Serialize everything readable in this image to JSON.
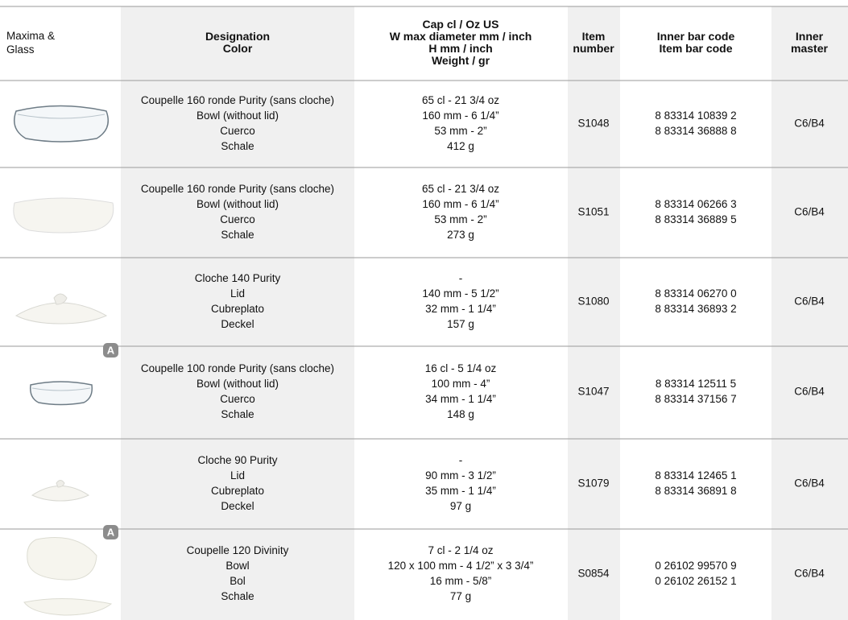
{
  "header": {
    "product": [
      "Maxima &",
      "Glass"
    ],
    "designation": [
      "Designation",
      "Color"
    ],
    "specs": [
      "Cap cl / Oz US",
      "W max diameter mm / inch",
      "H mm / inch",
      "Weight / gr"
    ],
    "item_number": [
      "Item",
      "number"
    ],
    "bar_code": [
      "Inner  bar code",
      "Item bar code"
    ],
    "inner_master": [
      "Inner",
      "master"
    ]
  },
  "rows": [
    {
      "designation": [
        "Coupelle 160 ronde Purity (sans cloche)",
        "Bowl (without lid)",
        "Cuerco",
        "Schale"
      ],
      "specs": [
        "65 cl - 21 3/4 oz",
        "160 mm - 6 1/4”",
        "53 mm - 2”",
        "412 g"
      ],
      "item_number": "S1048",
      "bar_codes": [
        "8 83314 10839 2",
        "8 83314 36888 8"
      ],
      "inner_master": "C6/B4"
    },
    {
      "designation": [
        "Coupelle 160 ronde Purity (sans cloche)",
        "Bowl (without lid)",
        "Cuerco",
        "Schale"
      ],
      "specs": [
        "65 cl - 21 3/4 oz",
        "160 mm - 6 1/4”",
        "53 mm - 2”",
        "273 g"
      ],
      "item_number": "S1051",
      "bar_codes": [
        "8 83314 06266 3",
        "8 83314 36889 5"
      ],
      "inner_master": "C6/B4"
    },
    {
      "designation": [
        "Cloche 140 Purity",
        "Lid",
        "Cubreplato",
        "Deckel"
      ],
      "specs": [
        "-",
        "140 mm - 5 1/2”",
        "32 mm - 1 1/4”",
        "157 g"
      ],
      "item_number": "S1080",
      "bar_codes": [
        "8 83314 06270 0",
        "8 83314 36893 2"
      ],
      "inner_master": "C6/B4"
    },
    {
      "badge": "A",
      "designation": [
        "Coupelle 100 ronde Purity (sans cloche)",
        "Bowl (without lid)",
        "Cuerco",
        "Schale"
      ],
      "specs": [
        "16 cl - 5 1/4 oz",
        "100 mm - 4”",
        "34 mm - 1 1/4”",
        "148 g"
      ],
      "item_number": "S1047",
      "bar_codes": [
        "8 83314 12511 5",
        "8 83314 37156 7"
      ],
      "inner_master": "C6/B4"
    },
    {
      "designation": [
        "Cloche 90 Purity",
        "Lid",
        "Cubreplato",
        "Deckel"
      ],
      "specs": [
        "-",
        "90 mm - 3 1/2”",
        "35 mm - 1 1/4”",
        "97 g"
      ],
      "item_number": "S1079",
      "bar_codes": [
        "8 83314 12465 1",
        "8 83314 36891 8"
      ],
      "inner_master": "C6/B4"
    },
    {
      "badge": "A",
      "designation": [
        "Coupelle 120 Divinity",
        "Bowl",
        "Bol",
        "Schale"
      ],
      "specs": [
        "7 cl - 2 1/4 oz",
        "120 x 100 mm - 4 1/2” x 3 3/4”",
        "16 mm - 5/8”",
        "77 g"
      ],
      "item_number": "S0854",
      "bar_codes": [
        "0 26102 99570 9",
        "0 26102 26152 1"
      ],
      "inner_master": "C6/B4"
    }
  ]
}
